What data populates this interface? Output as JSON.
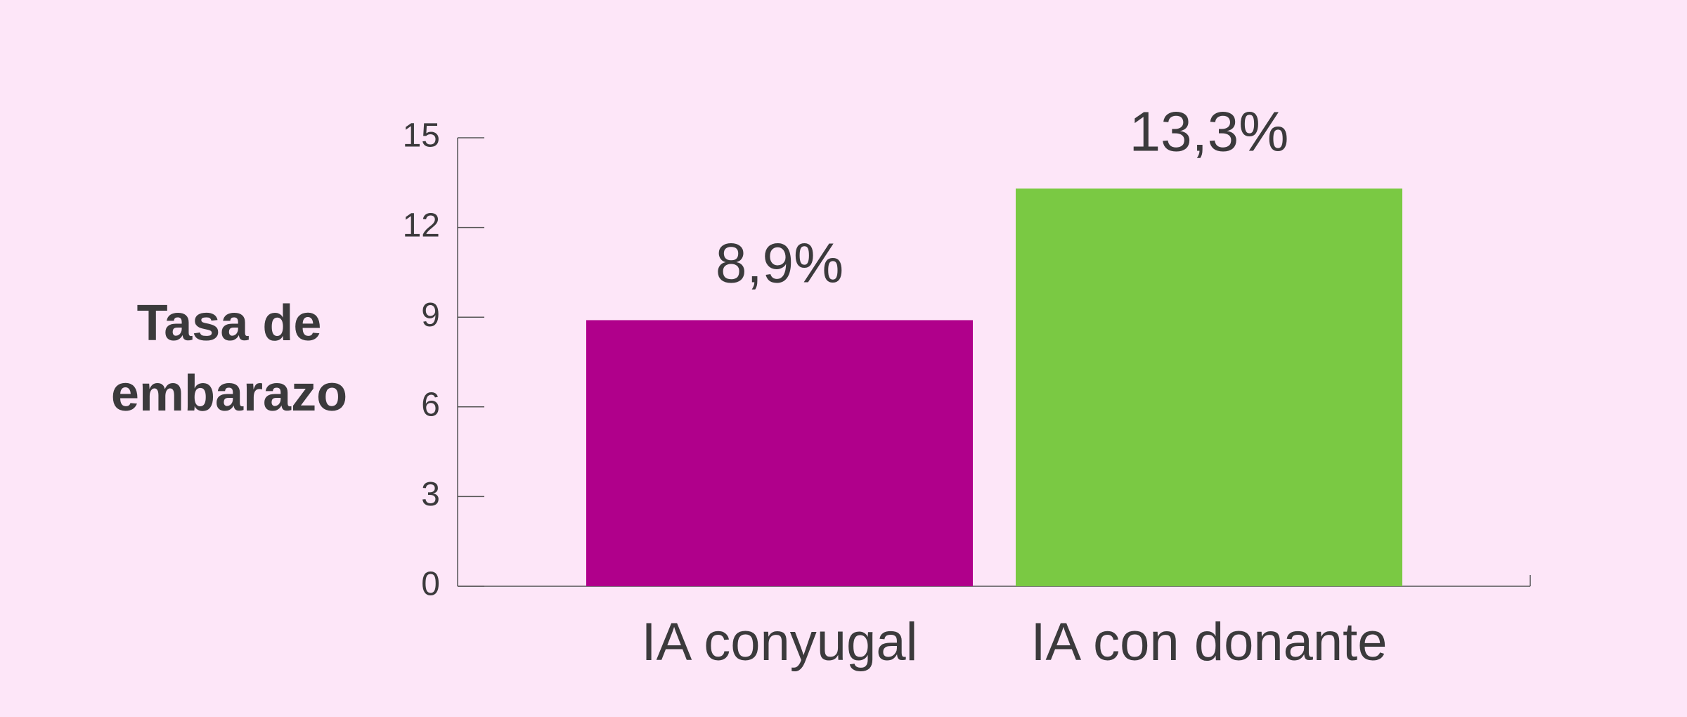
{
  "chart_data": {
    "type": "bar",
    "y_label": "Tasa de embarazo",
    "categories": [
      "IA conyugal",
      "IA con donante"
    ],
    "values": [
      8.9,
      13.3
    ],
    "value_labels": [
      "8,9%",
      "13,3%"
    ],
    "colors": [
      "#b0008b",
      "#7ac943"
    ],
    "ylim": [
      0,
      15
    ],
    "yticks": [
      0,
      3,
      6,
      9,
      12,
      15
    ]
  }
}
